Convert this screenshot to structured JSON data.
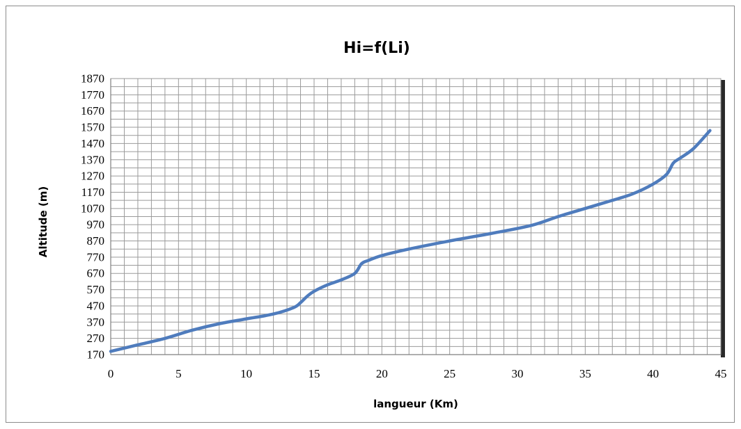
{
  "chart_data": {
    "type": "line",
    "title": "Hi=f(Li)",
    "xlabel": "langueur (Km)",
    "ylabel": "Altitude (m)",
    "xlim": [
      0,
      45
    ],
    "ylim": [
      170,
      1870
    ],
    "x_ticks": [
      "0",
      "5",
      "10",
      "15",
      "20",
      "25",
      "30",
      "35",
      "40",
      "45"
    ],
    "y_ticks": [
      "170",
      "270",
      "370",
      "470",
      "570",
      "670",
      "770",
      "870",
      "970",
      "1070",
      "1170",
      "1270",
      "1370",
      "1470",
      "1570",
      "1670",
      "1770",
      "1870"
    ],
    "grid": true,
    "legend": "none",
    "series_color": "#4f7cbd",
    "series": [
      {
        "x": [
          0,
          2,
          4,
          6,
          8,
          10,
          12,
          13.5,
          14,
          14.5,
          15,
          16,
          17,
          18,
          18.5,
          19,
          20,
          22,
          25,
          28,
          31,
          33,
          35,
          37,
          38.5,
          40,
          41,
          41.5,
          42,
          43,
          44.2
        ],
        "y": [
          190,
          230,
          270,
          320,
          360,
          390,
          420,
          460,
          490,
          530,
          560,
          600,
          630,
          670,
          730,
          750,
          780,
          820,
          870,
          915,
          965,
          1020,
          1070,
          1120,
          1160,
          1220,
          1280,
          1350,
          1380,
          1440,
          1550
        ]
      }
    ]
  }
}
